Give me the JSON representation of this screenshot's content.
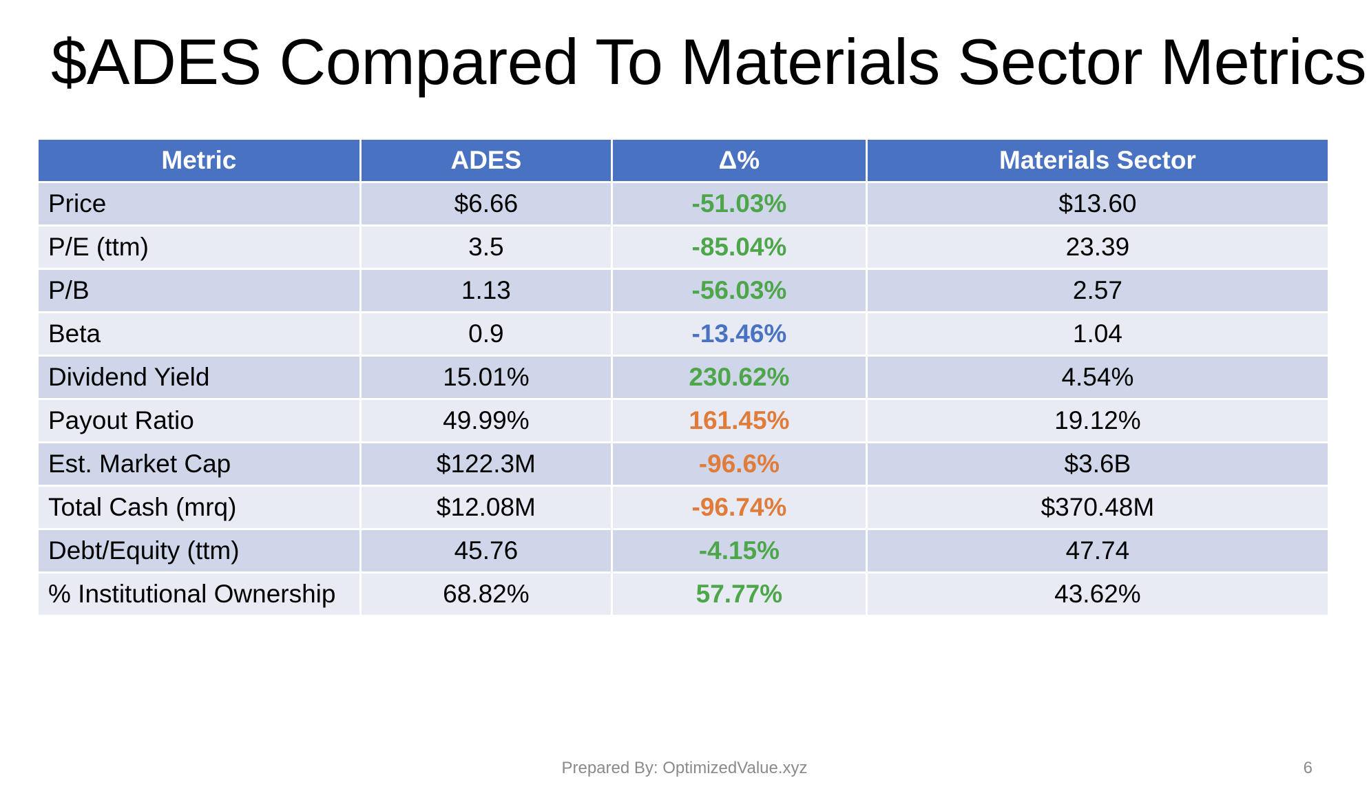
{
  "slide": {
    "title": "$ADES Compared To Materials Sector Metrics",
    "footer": "Prepared By: OptimizedValue.xyz",
    "page_number": "6"
  },
  "colors": {
    "header_bg": "#4a72c3",
    "row_dark": "#d0d6e9",
    "row_light": "#e8ebf4",
    "delta_green": "#4ea64a",
    "delta_blue": "#4a72c3",
    "delta_orange": "#e07b39"
  },
  "table": {
    "headers": [
      "Metric",
      "ADES",
      "Δ%",
      "Materials Sector"
    ],
    "rows": [
      {
        "metric": "Price",
        "ades": "$6.66",
        "delta": "-51.03%",
        "delta_color": "#4ea64a",
        "sector": "$13.60"
      },
      {
        "metric": "P/E (ttm)",
        "ades": "3.5",
        "delta": "-85.04%",
        "delta_color": "#4ea64a",
        "sector": "23.39"
      },
      {
        "metric": "P/B",
        "ades": "1.13",
        "delta": "-56.03%",
        "delta_color": "#4ea64a",
        "sector": "2.57"
      },
      {
        "metric": "Beta",
        "ades": "0.9",
        "delta": "-13.46%",
        "delta_color": "#4a72c3",
        "sector": "1.04"
      },
      {
        "metric": "Dividend Yield",
        "ades": "15.01%",
        "delta": "230.62%",
        "delta_color": "#4ea64a",
        "sector": "4.54%"
      },
      {
        "metric": "Payout Ratio",
        "ades": "49.99%",
        "delta": "161.45%",
        "delta_color": "#e07b39",
        "sector": "19.12%"
      },
      {
        "metric": "Est. Market Cap",
        "ades": "$122.3M",
        "delta": "-96.6%",
        "delta_color": "#e07b39",
        "sector": "$3.6B"
      },
      {
        "metric": "Total Cash (mrq)",
        "ades": "$12.08M",
        "delta": "-96.74%",
        "delta_color": "#e07b39",
        "sector": "$370.48M"
      },
      {
        "metric": "Debt/Equity (ttm)",
        "ades": "45.76",
        "delta": "-4.15%",
        "delta_color": "#4ea64a",
        "sector": "47.74"
      },
      {
        "metric": "% Institutional Ownership",
        "ades": "68.82%",
        "delta": "57.77%",
        "delta_color": "#4ea64a",
        "sector": "43.62%"
      }
    ]
  }
}
